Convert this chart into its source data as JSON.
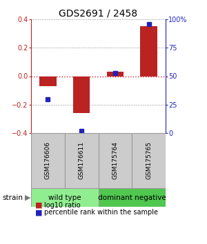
{
  "title": "GDS2691 / 2458",
  "samples": [
    "GSM176606",
    "GSM176611",
    "GSM175764",
    "GSM175765"
  ],
  "log10_ratio": [
    -0.07,
    -0.26,
    0.03,
    0.35
  ],
  "percentile_rank": [
    30,
    2,
    53,
    96
  ],
  "groups": [
    {
      "label": "wild type",
      "samples": [
        0,
        1
      ],
      "color": "#90EE90"
    },
    {
      "label": "dominant negative",
      "samples": [
        2,
        3
      ],
      "color": "#50C850"
    }
  ],
  "group_label": "strain",
  "ylim": [
    -0.4,
    0.4
  ],
  "y2lim": [
    0,
    100
  ],
  "yticks": [
    -0.4,
    -0.2,
    0.0,
    0.2,
    0.4
  ],
  "y2ticks": [
    0,
    25,
    50,
    75,
    100
  ],
  "bar_color": "#BB2222",
  "dot_color": "#2222BB",
  "zero_line_color": "#CC2222",
  "grid_color": "#888888",
  "legend_bar_color": "#BB2222",
  "legend_dot_color": "#2222BB",
  "legend_log10": "log10 ratio",
  "legend_pct": "percentile rank within the sample",
  "background_color": "#ffffff",
  "plot_bg_color": "#ffffff",
  "sample_box_color": "#CCCCCC",
  "sample_box_edge": "#999999"
}
